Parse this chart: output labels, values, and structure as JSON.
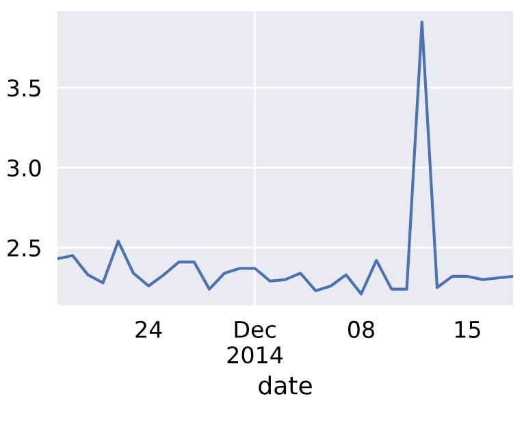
{
  "chart_data": {
    "type": "line",
    "xlabel": "date",
    "x": [
      "2014-11-18",
      "2014-11-19",
      "2014-11-20",
      "2014-11-21",
      "2014-11-22",
      "2014-11-23",
      "2014-11-24",
      "2014-11-25",
      "2014-11-26",
      "2014-11-27",
      "2014-11-28",
      "2014-11-29",
      "2014-11-30",
      "2014-12-01",
      "2014-12-02",
      "2014-12-03",
      "2014-12-04",
      "2014-12-05",
      "2014-12-06",
      "2014-12-07",
      "2014-12-08",
      "2014-12-09",
      "2014-12-10",
      "2014-12-11",
      "2014-12-12",
      "2014-12-13",
      "2014-12-14",
      "2014-12-15",
      "2014-12-16",
      "2014-12-17",
      "2014-12-18"
    ],
    "series": [
      {
        "color": "#4c72b0",
        "values": [
          2.43,
          2.45,
          2.33,
          2.28,
          2.54,
          2.34,
          2.26,
          2.33,
          2.41,
          2.41,
          2.24,
          2.34,
          2.37,
          2.37,
          2.29,
          2.3,
          2.34,
          2.23,
          2.26,
          2.33,
          2.21,
          2.42,
          2.24,
          2.24,
          3.91,
          2.25,
          2.32,
          2.32,
          2.3,
          2.31,
          2.32
        ]
      }
    ],
    "xlim": [
      "2014-11-18",
      "2014-12-18"
    ],
    "xticks": [
      {
        "value": "2014-11-24",
        "label": "24"
      },
      {
        "value": "2014-12-01",
        "label": "Dec\n2014"
      },
      {
        "value": "2014-12-08",
        "label": "08"
      },
      {
        "value": "2014-12-15",
        "label": "15"
      }
    ],
    "ylim": [
      2.14,
      3.98
    ],
    "yticks": [
      2.5,
      {
        "value": 3,
        "label": "3.0"
      },
      3.5
    ],
    "grid": true,
    "legend": false,
    "marker": "none",
    "line_style": "solid"
  }
}
